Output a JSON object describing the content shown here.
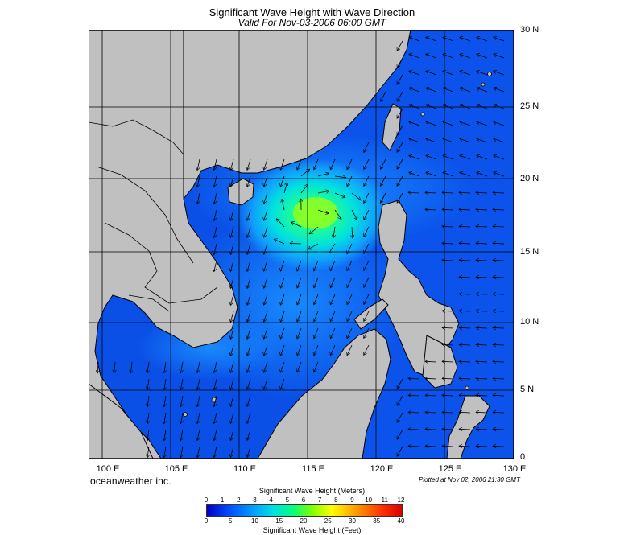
{
  "title": "Significant Wave Height with Wave Direction",
  "subtitle": "Valid For Nov-03-2006 06:00 GMT",
  "brand": "oceanweather inc.",
  "plotted": "Plotted at Nov 02, 2006 21:30 GMT",
  "map": {
    "lon_range": [
      99,
      130
    ],
    "lat_range": [
      0,
      30
    ],
    "lon_labels": [
      "100 E",
      "105 E",
      "110 E",
      "115 E",
      "120 E",
      "125 E",
      "130 E"
    ],
    "lat_labels": [
      "30 N",
      "25 N",
      "20 N",
      "15 N",
      "10 N",
      "5 N",
      "0"
    ],
    "land_color": "#c0c0c0",
    "sea_base_color": "#0a50e6",
    "wave_peak_location": {
      "lon": 115,
      "lat": 18
    }
  },
  "colorbar": {
    "title_meters": "Significant Wave Height (Meters)",
    "title_feet": "Significant Wave Height (Feet)",
    "meter_ticks": [
      "0",
      "1",
      "2",
      "3",
      "4",
      "5",
      "6",
      "7",
      "8",
      "9",
      "10",
      "11",
      "12"
    ],
    "feet_ticks": [
      "0",
      "5",
      "10",
      "15",
      "20",
      "25",
      "30",
      "35",
      "40"
    ]
  }
}
